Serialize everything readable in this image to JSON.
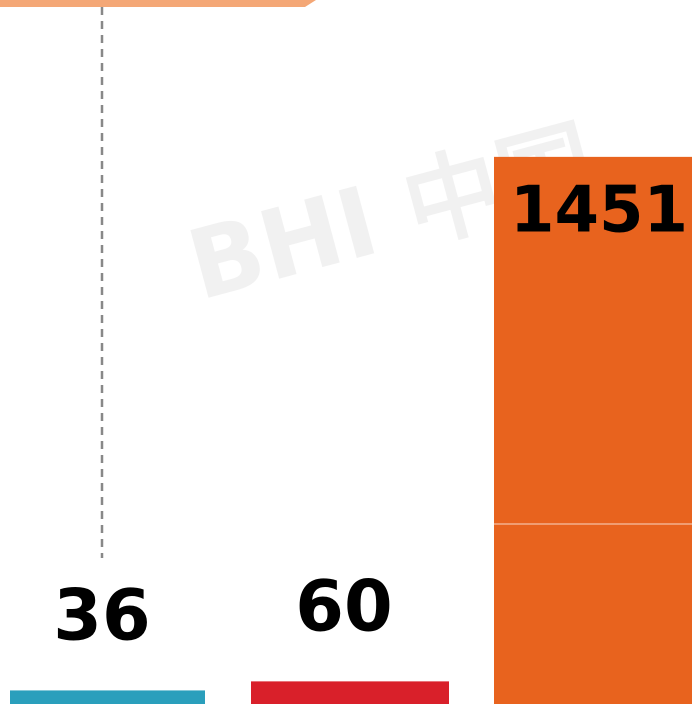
{
  "chart_data": {
    "type": "bar",
    "watermark": "BHI 中国",
    "values": [
      36,
      60,
      1451
    ],
    "colors": [
      "#2a9fbc",
      "#d9202a",
      "#e8631e"
    ],
    "ylim": [
      0,
      1867
    ]
  }
}
